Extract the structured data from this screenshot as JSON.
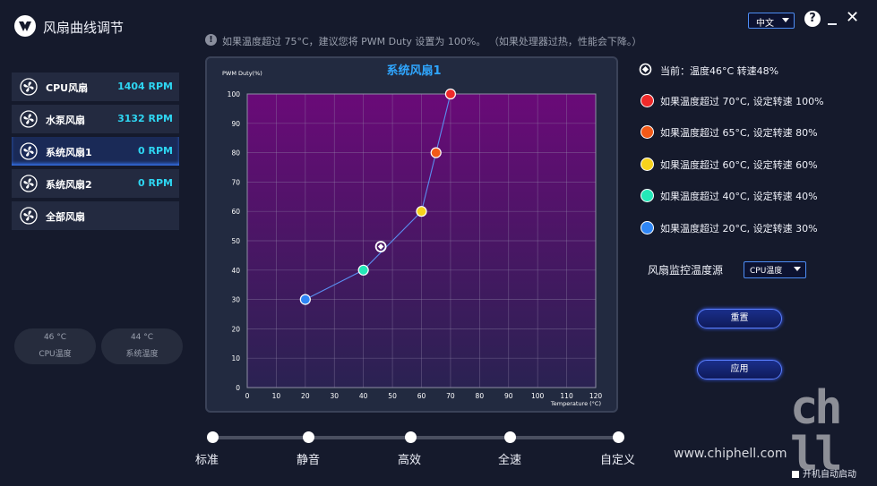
{
  "app": {
    "title": "风扇曲线调节",
    "language": "中文"
  },
  "warning": "如果温度超过 75°C，建议您将 PWM Duty 设置为 100%。 （如果处理器过热，性能会下降。）",
  "fans": [
    {
      "name": "CPU风扇",
      "rpm": "1404 RPM"
    },
    {
      "name": "水泵风扇",
      "rpm": "3132 RPM"
    },
    {
      "name": "系统风扇1",
      "rpm": "0 RPM"
    },
    {
      "name": "系统风扇2",
      "rpm": "0 RPM"
    },
    {
      "name": "全部风扇",
      "rpm": ""
    }
  ],
  "temps": [
    {
      "value": "46 °C",
      "label": "CPU温度"
    },
    {
      "value": "44 °C",
      "label": "系统温度"
    }
  ],
  "current": "当前：温度46°C  转速48%",
  "rules": [
    {
      "text": "如果温度超过 70°C, 设定转速 100%",
      "color": "#ee2a2a"
    },
    {
      "text": "如果温度超过 65°C, 设定转速 80%",
      "color": "#f25a18"
    },
    {
      "text": "如果温度超过 60°C, 设定转速 60%",
      "color": "#f7d21c"
    },
    {
      "text": "如果温度超过 40°C, 设定转速 40%",
      "color": "#24e8b8"
    },
    {
      "text": "如果温度超过 20°C, 设定转速 30%",
      "color": "#2f86f5"
    }
  ],
  "source": {
    "label": "风扇监控温度源",
    "value": "CPU温度"
  },
  "buttons": {
    "reset": "重置",
    "apply": "应用"
  },
  "modes": [
    "标准",
    "静音",
    "高效",
    "全速",
    "自定义"
  ],
  "active_mode": 0,
  "watermark": {
    "logo": "chip hell",
    "url": "www.chiphell.com"
  },
  "autostart": "开机自动启动",
  "chart_data": {
    "type": "line",
    "title": "系统风扇1",
    "xlabel": "Temperature (°C)",
    "ylabel": "PWM Duty(%)",
    "xlim": [
      0,
      120
    ],
    "ylim": [
      0,
      100
    ],
    "xticks": [
      0,
      10,
      20,
      30,
      40,
      50,
      60,
      70,
      80,
      90,
      100,
      110,
      120
    ],
    "yticks": [
      0,
      10,
      20,
      30,
      40,
      50,
      60,
      70,
      80,
      90,
      100
    ],
    "grid": true,
    "points": [
      {
        "x": 20,
        "y": 30,
        "color": "#2f86f5"
      },
      {
        "x": 40,
        "y": 40,
        "color": "#24e8b8"
      },
      {
        "x": 60,
        "y": 60,
        "color": "#f7d21c"
      },
      {
        "x": 65,
        "y": 80,
        "color": "#f25a18"
      },
      {
        "x": 70,
        "y": 100,
        "color": "#ee2a2a"
      }
    ],
    "current": {
      "x": 46,
      "y": 48
    }
  }
}
